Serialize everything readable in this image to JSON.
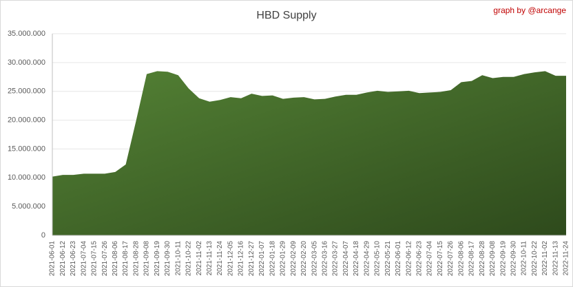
{
  "chart_data": {
    "type": "area",
    "title": "HBD Supply",
    "annotation": "graph by @arcange",
    "categories": [
      "2021-06-01",
      "2021-06-12",
      "2021-06-23",
      "2021-07-04",
      "2021-07-15",
      "2021-07-26",
      "2021-08-06",
      "2021-08-17",
      "2021-08-28",
      "2021-09-08",
      "2021-09-19",
      "2021-09-30",
      "2021-10-11",
      "2021-10-22",
      "2021-11-02",
      "2021-11-13",
      "2021-11-24",
      "2021-12-05",
      "2021-12-16",
      "2021-12-27",
      "2022-01-07",
      "2022-01-18",
      "2022-01-29",
      "2022-02-09",
      "2022-02-20",
      "2022-03-05",
      "2022-03-16",
      "2022-03-27",
      "2022-04-07",
      "2022-04-18",
      "2022-04-29",
      "2022-05-10",
      "2022-05-21",
      "2022-06-01",
      "2022-06-12",
      "2022-06-23",
      "2022-07-04",
      "2022-07-15",
      "2022-07-26",
      "2022-08-06",
      "2022-08-17",
      "2022-08-28",
      "2022-09-08",
      "2022-09-19",
      "2022-09-30",
      "2022-10-11",
      "2022-10-22",
      "2022-11-02",
      "2022-11-13",
      "2022-11-24"
    ],
    "values": [
      10200000,
      10500000,
      10500000,
      10700000,
      10700000,
      10700000,
      11000000,
      12300000,
      20000000,
      28000000,
      28500000,
      28400000,
      27800000,
      25500000,
      23800000,
      23200000,
      23500000,
      24000000,
      23800000,
      24600000,
      24200000,
      24300000,
      23700000,
      23900000,
      24000000,
      23600000,
      23700000,
      24100000,
      24400000,
      24400000,
      24800000,
      25100000,
      24900000,
      25000000,
      25100000,
      24700000,
      24800000,
      24900000,
      25200000,
      26600000,
      26800000,
      27800000,
      27300000,
      27500000,
      27500000,
      28000000,
      28300000,
      28500000,
      27700000,
      27700000
    ],
    "color": "#548235",
    "ylim": [
      0,
      35000000
    ],
    "yticks": [
      0,
      {
        "value": 5000000,
        "label": "5.000.000"
      },
      {
        "value": 10000000,
        "label": "10.000.000"
      },
      {
        "value": 15000000,
        "label": "15.000.000"
      },
      {
        "value": 20000000,
        "label": "20.000.000"
      },
      {
        "value": 25000000,
        "label": "25.000.000"
      },
      {
        "value": 30000000,
        "label": "30.000.000"
      },
      {
        "value": 35000000,
        "label": "35.000.000"
      }
    ],
    "grid": true
  }
}
